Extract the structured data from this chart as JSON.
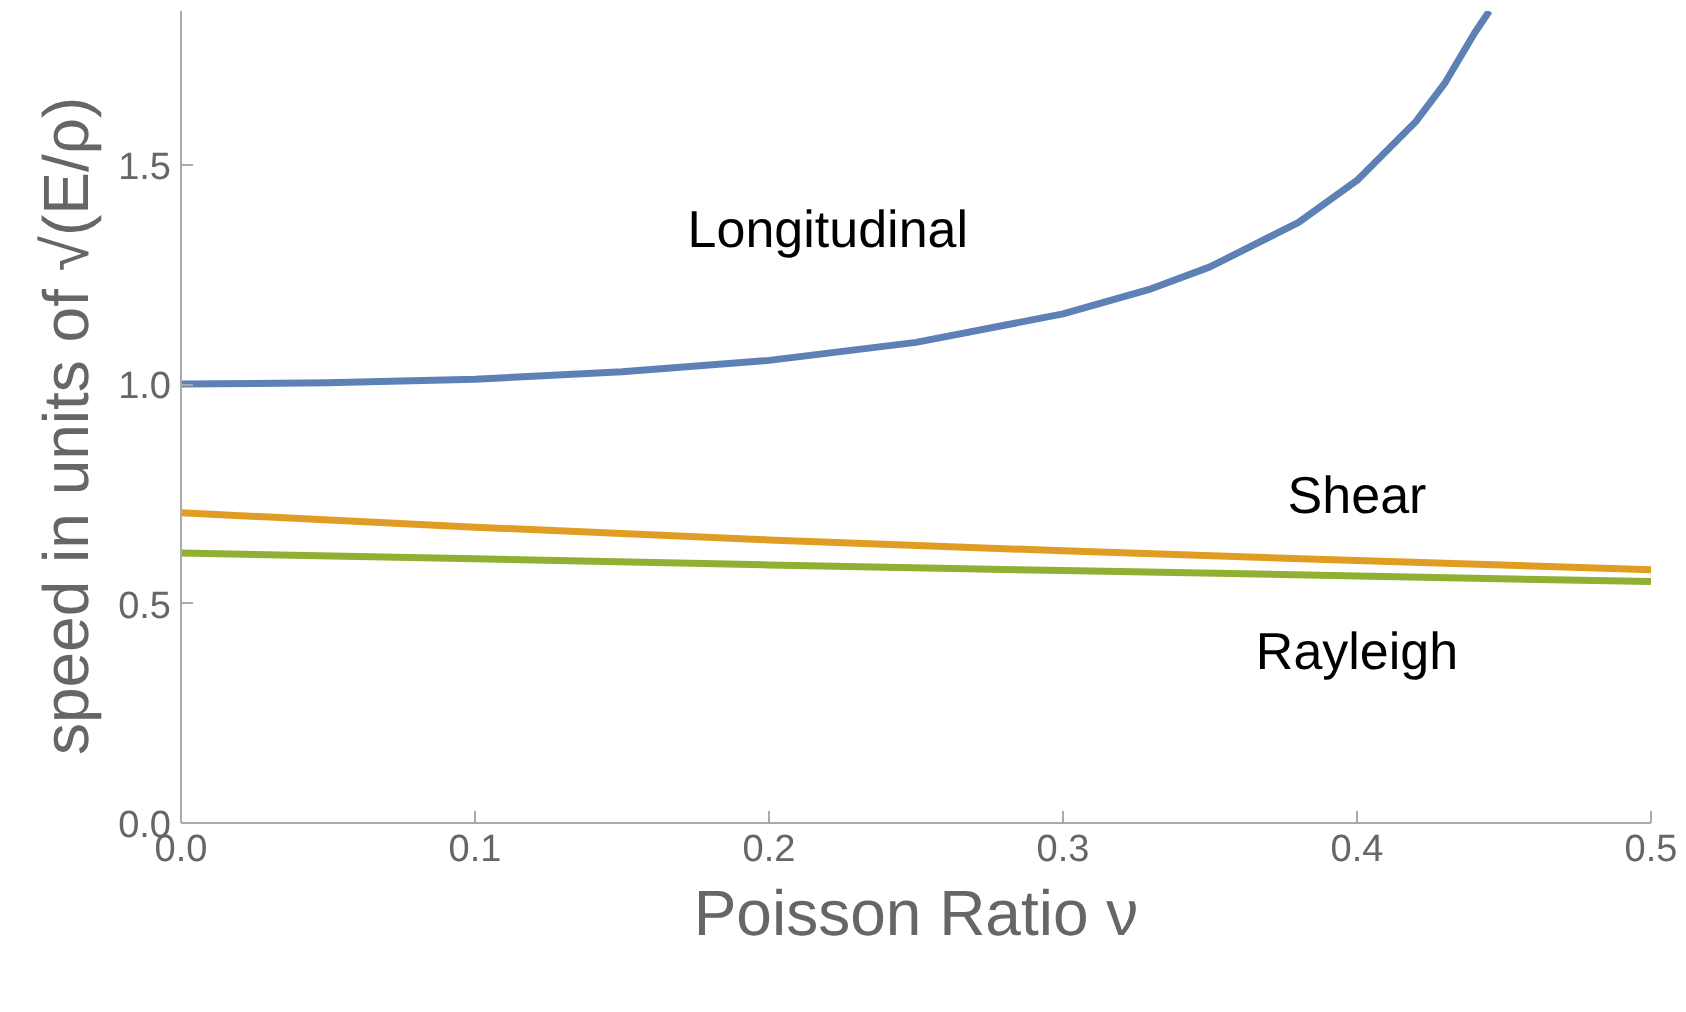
{
  "chart_data": {
    "type": "line",
    "xlabel": "Poisson Ratio ν",
    "ylabel": "speed  in units of √(E/ρ)",
    "xlim": [
      0,
      0.5
    ],
    "ylim": [
      0,
      1.85
    ],
    "xticks": [
      {
        "value": 0,
        "label": "0.0"
      },
      0.1,
      0.2,
      0.3,
      0.4,
      0.5
    ],
    "yticks": [
      {
        "value": 0,
        "label": "0.0"
      },
      0.5,
      {
        "value": 1,
        "label": "1.0"
      },
      1.5
    ],
    "grid": false,
    "legend": false,
    "marker": "none",
    "line_style": "solid",
    "series": [
      {
        "name": "Longitudinal",
        "color": "#5e81b5",
        "x": [
          0,
          0.05,
          0.1,
          0.15,
          0.2,
          0.25,
          0.3,
          0.33,
          0.35,
          0.38,
          0.4,
          0.42,
          0.43,
          0.44,
          0.445
        ],
        "values": [
          1.0,
          1.003,
          1.011,
          1.028,
          1.054,
          1.095,
          1.16,
          1.217,
          1.267,
          1.368,
          1.464,
          1.598,
          1.687,
          1.8,
          1.85
        ]
      },
      {
        "name": "Shear",
        "color": "#e19c24",
        "x": [
          0,
          0.1,
          0.2,
          0.3,
          0.4,
          0.5
        ],
        "values": [
          0.707,
          0.674,
          0.645,
          0.62,
          0.598,
          0.577
        ]
      },
      {
        "name": "Rayleigh",
        "color": "#8fb032",
        "x": [
          0,
          0.1,
          0.2,
          0.3,
          0.4,
          0.5
        ],
        "values": [
          0.615,
          0.602,
          0.588,
          0.575,
          0.563,
          0.55
        ]
      }
    ]
  }
}
